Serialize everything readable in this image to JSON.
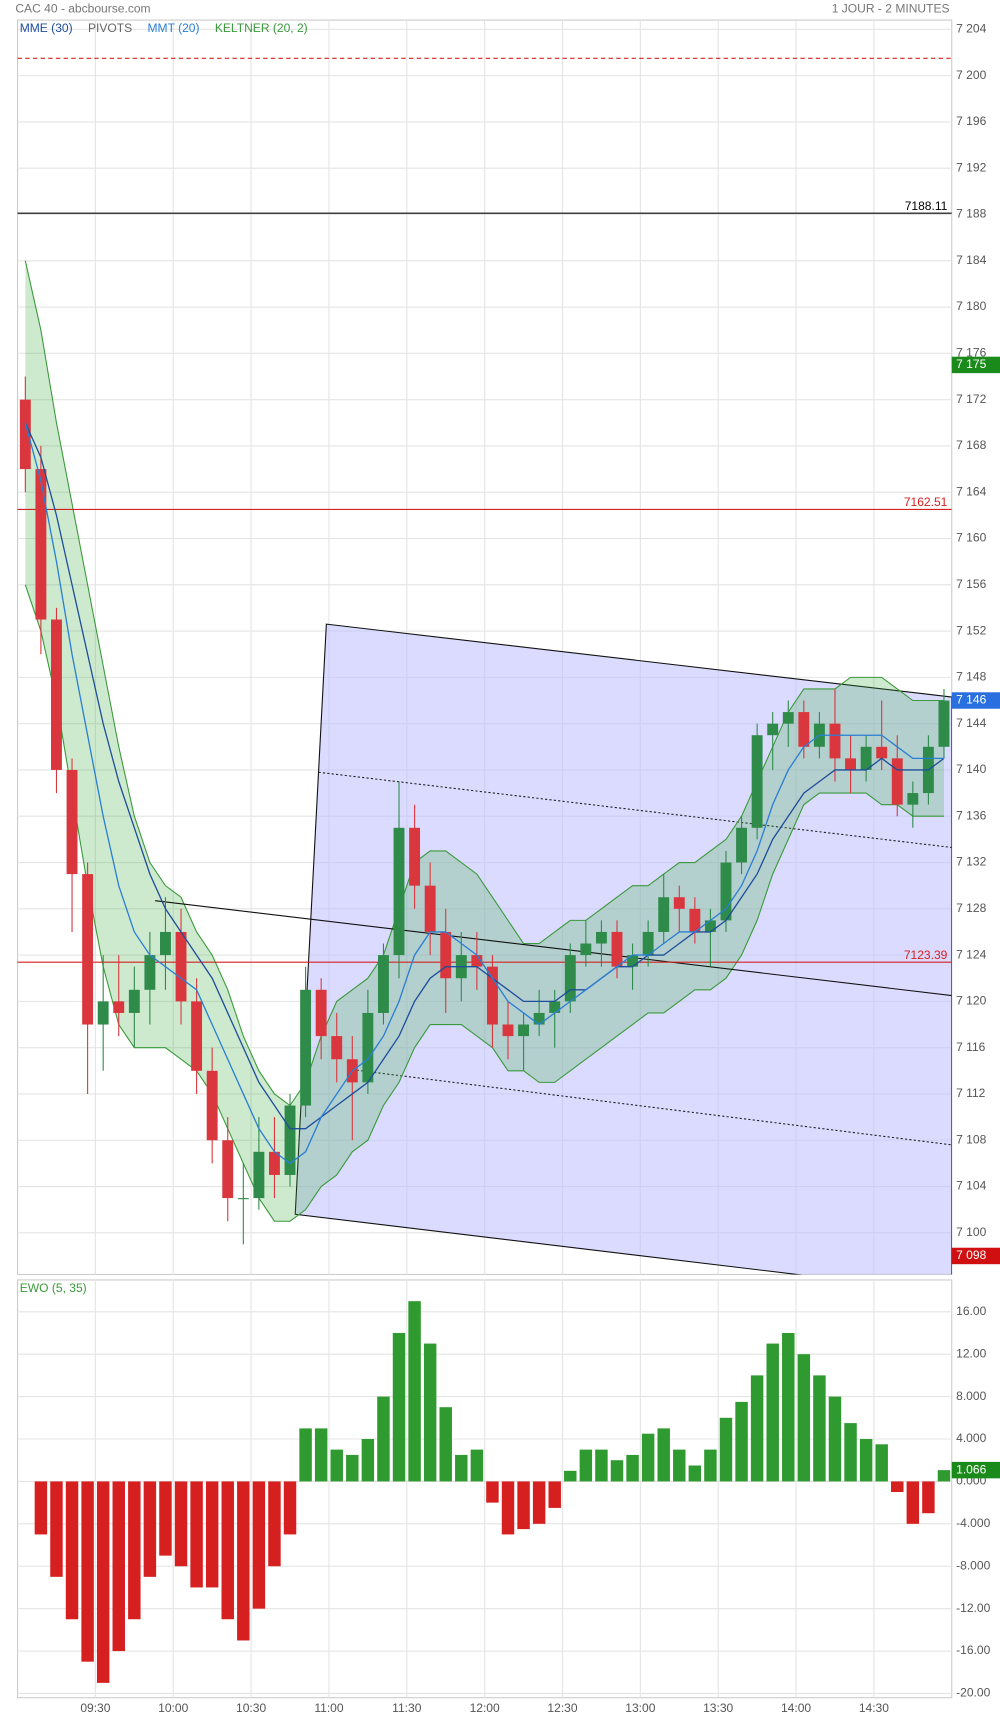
{
  "chart_data": [
    {
      "type": "candlestick",
      "title": "CAC 40 - abcbourse.com",
      "subtitle": "1 JOUR - 2 MINUTES",
      "x": [
        "09:00",
        "09:06",
        "09:12",
        "09:18",
        "09:24",
        "09:30",
        "09:36",
        "09:42",
        "09:48",
        "09:54",
        "10:00",
        "10:06",
        "10:12",
        "10:18",
        "10:24",
        "10:30",
        "10:36",
        "10:42",
        "10:48",
        "10:54",
        "11:00",
        "11:06",
        "11:12",
        "11:18",
        "11:24",
        "11:30",
        "11:36",
        "11:42",
        "11:48",
        "11:54",
        "12:00",
        "12:06",
        "12:12",
        "12:18",
        "12:24",
        "12:30",
        "12:36",
        "12:42",
        "12:48",
        "12:54",
        "13:00",
        "13:06",
        "13:12",
        "13:18",
        "13:24",
        "13:30",
        "13:36",
        "13:42",
        "13:48",
        "13:54",
        "14:00",
        "14:06",
        "14:12",
        "14:18",
        "14:24",
        "14:30",
        "14:36",
        "14:42",
        "14:48",
        "14:54"
      ],
      "open": [
        7172,
        7166,
        7153,
        7140,
        7131,
        7118,
        7120,
        7119,
        7121,
        7124,
        7126,
        7120,
        7114,
        7108,
        7103,
        7103,
        7107,
        7105,
        7111,
        7121,
        7117,
        7115,
        7113,
        7119,
        7124,
        7135,
        7130,
        7126,
        7122,
        7124,
        7123,
        7118,
        7117,
        7118,
        7119,
        7120,
        7124,
        7125,
        7126,
        7123,
        7124,
        7126,
        7129,
        7128,
        7126,
        7127,
        7132,
        7135,
        7143,
        7144,
        7145,
        7142,
        7144,
        7141,
        7140,
        7142,
        7141,
        7137,
        7138,
        7142
      ],
      "high": [
        7174,
        7168,
        7154,
        7141,
        7132,
        7124,
        7124,
        7123,
        7126,
        7129,
        7128,
        7122,
        7116,
        7110,
        7106,
        7110,
        7110,
        7112,
        7123,
        7122,
        7119,
        7117,
        7121,
        7125,
        7139,
        7137,
        7132,
        7128,
        7126,
        7126,
        7124,
        7120,
        7119,
        7121,
        7121,
        7125,
        7127,
        7127,
        7127,
        7125,
        7127,
        7131,
        7130,
        7129,
        7128,
        7133,
        7136,
        7144,
        7145,
        7146,
        7146,
        7145,
        7147,
        7143,
        7143,
        7146,
        7143,
        7139,
        7143,
        7147
      ],
      "low": [
        7164,
        7150,
        7138,
        7126,
        7112,
        7114,
        7117,
        7116,
        7118,
        7121,
        7118,
        7112,
        7106,
        7101,
        7099,
        7102,
        7103,
        7104,
        7110,
        7115,
        7113,
        7108,
        7112,
        7118,
        7122,
        7128,
        7124,
        7119,
        7120,
        7121,
        7116,
        7115,
        7114,
        7117,
        7116,
        7119,
        7123,
        7123,
        7122,
        7121,
        7123,
        7125,
        7126,
        7125,
        7123,
        7126,
        7131,
        7134,
        7140,
        7142,
        7141,
        7141,
        7139,
        7138,
        7139,
        7140,
        7136,
        7135,
        7137,
        7141
      ],
      "close": [
        7166,
        7153,
        7140,
        7131,
        7118,
        7120,
        7119,
        7121,
        7124,
        7126,
        7120,
        7114,
        7108,
        7103,
        7103,
        7107,
        7105,
        7111,
        7121,
        7117,
        7115,
        7113,
        7119,
        7124,
        7135,
        7130,
        7126,
        7122,
        7124,
        7123,
        7118,
        7117,
        7118,
        7119,
        7120,
        7124,
        7125,
        7126,
        7123,
        7124,
        7126,
        7129,
        7128,
        7126,
        7127,
        7132,
        7135,
        7143,
        7144,
        7145,
        7142,
        7144,
        7141,
        7140,
        7142,
        7141,
        7137,
        7138,
        7142,
        7146
      ],
      "up_color": "#2e8b4a",
      "down_color": "#d9363e",
      "series": [
        {
          "name": "MME (30)",
          "color": "#1f4e9c",
          "values": [
            7170,
            7167,
            7162,
            7156,
            7150,
            7144,
            7139,
            7135,
            7131,
            7128,
            7126,
            7124,
            7122,
            7119,
            7116,
            7113,
            7111,
            7109,
            7109,
            7110,
            7111,
            7112,
            7113,
            7115,
            7117,
            7120,
            7122,
            7123,
            7123,
            7123,
            7122,
            7121,
            7120,
            7120,
            7120,
            7121,
            7121,
            7122,
            7123,
            7123,
            7124,
            7124,
            7125,
            7126,
            7126,
            7127,
            7129,
            7131,
            7134,
            7136,
            7138,
            7139,
            7140,
            7140,
            7140,
            7141,
            7140,
            7140,
            7140,
            7141
          ]
        },
        {
          "name": "MMT (20)",
          "color": "#2a7fd4",
          "values": [
            7170,
            7165,
            7158,
            7150,
            7143,
            7136,
            7130,
            7126,
            7124,
            7123,
            7122,
            7121,
            7118,
            7115,
            7112,
            7109,
            7107,
            7106,
            7107,
            7110,
            7112,
            7114,
            7115,
            7117,
            7120,
            7124,
            7126,
            7126,
            7125,
            7124,
            7122,
            7120,
            7119,
            7118,
            7119,
            7120,
            7121,
            7122,
            7123,
            7124,
            7124,
            7125,
            7126,
            7126,
            7127,
            7128,
            7130,
            7133,
            7137,
            7140,
            7142,
            7143,
            7143,
            7143,
            7143,
            7143,
            7142,
            7141,
            7141,
            7141
          ]
        }
      ],
      "pivots": {
        "name": "PIVOTS",
        "color": "#666666",
        "levels": [
          {
            "value": 7201.5,
            "color": "#d62020",
            "dash": true,
            "labeled": false
          },
          {
            "value": 7188.11,
            "color": "#000000",
            "dash": false,
            "labeled": true
          },
          {
            "value": 7162.51,
            "color": "#d62020",
            "dash": false,
            "labeled": true
          },
          {
            "value": 7123.39,
            "color": "#d62020",
            "dash": false,
            "labeled": true
          }
        ]
      },
      "keltner": {
        "name": "KELTNER (20, 2)",
        "color": "#3a9a3a",
        "fill": "rgba(60,170,60,0.25)",
        "upper": [
          7184,
          7178,
          7170,
          7163,
          7156,
          7149,
          7142,
          7136,
          7132,
          7130,
          7129,
          7126,
          7124,
          7121,
          7117,
          7114,
          7112,
          7111,
          7113,
          7117,
          7120,
          7121,
          7122,
          7124,
          7128,
          7132,
          7133,
          7133,
          7132,
          7131,
          7129,
          7127,
          7125,
          7125,
          7126,
          7127,
          7127,
          7128,
          7129,
          7130,
          7130,
          7131,
          7132,
          7132,
          7133,
          7134,
          7136,
          7139,
          7142,
          7145,
          7147,
          7147,
          7147,
          7148,
          7148,
          7148,
          7147,
          7146,
          7146,
          7146
        ],
        "lower": [
          7156,
          7152,
          7146,
          7138,
          7130,
          7123,
          7118,
          7116,
          7116,
          7116,
          7115,
          7114,
          7112,
          7109,
          7106,
          7103,
          7101,
          7101,
          7102,
          7104,
          7105,
          7107,
          7108,
          7111,
          7113,
          7116,
          7118,
          7118,
          7118,
          7117,
          7116,
          7114,
          7114,
          7113,
          7113,
          7114,
          7115,
          7116,
          7117,
          7118,
          7119,
          7119,
          7120,
          7121,
          7121,
          7122,
          7124,
          7127,
          7131,
          7134,
          7137,
          7138,
          7138,
          7138,
          7138,
          7137,
          7137,
          7136,
          7136,
          7136
        ]
      },
      "channel": {
        "fill": "rgba(190,190,255,0.55)",
        "upper": {
          "x": [
            "10:59",
            "15:00"
          ],
          "y": [
            7152.6,
            7146.3
          ]
        },
        "lower": {
          "x": [
            "10:47",
            "15:00"
          ],
          "y": [
            7101.6,
            7094.8
          ]
        },
        "mid": {
          "x": [
            "10:56",
            "15:00"
          ],
          "y": [
            7139.8,
            7133.3
          ]
        },
        "inner": {
          "x": [
            "11:09",
            "15:00"
          ],
          "y": [
            7114.1,
            7107.6
          ]
        }
      },
      "trendline": {
        "x": [
          "09:53",
          "15:00"
        ],
        "y": [
          7128.7,
          7120.5
        ]
      },
      "xlim": [
        "09:00",
        "15:00"
      ],
      "xticks": [
        "09:30",
        "10:00",
        "10:30",
        "11:00",
        "11:30",
        "12:00",
        "12:30",
        "13:00",
        "13:30",
        "14:00",
        "14:30"
      ],
      "ylim": [
        7096.4,
        7204.8
      ],
      "yticks": [
        {
          "value": 7100,
          "label": "7 100"
        },
        {
          "value": 7104,
          "label": "7 104"
        },
        {
          "value": 7108,
          "label": "7 108"
        },
        {
          "value": 7112,
          "label": "7 112"
        },
        {
          "value": 7116,
          "label": "7 116"
        },
        {
          "value": 7120,
          "label": "7 120"
        },
        {
          "value": 7124,
          "label": "7 124"
        },
        {
          "value": 7128,
          "label": "7 128"
        },
        {
          "value": 7132,
          "label": "7 132"
        },
        {
          "value": 7136,
          "label": "7 136"
        },
        {
          "value": 7140,
          "label": "7 140"
        },
        {
          "value": 7144,
          "label": "7 144"
        },
        {
          "value": 7148,
          "label": "7 148"
        },
        {
          "value": 7152,
          "label": "7 152"
        },
        {
          "value": 7156,
          "label": "7 156"
        },
        {
          "value": 7160,
          "label": "7 160"
        },
        {
          "value": 7164,
          "label": "7 164"
        },
        {
          "value": 7168,
          "label": "7 168"
        },
        {
          "value": 7172,
          "label": "7 172"
        },
        {
          "value": 7176,
          "label": "7 176"
        },
        {
          "value": 7180,
          "label": "7 180"
        },
        {
          "value": 7184,
          "label": "7 184"
        },
        {
          "value": 7188,
          "label": "7 188"
        },
        {
          "value": 7192,
          "label": "7 192"
        },
        {
          "value": 7196,
          "label": "7 196"
        },
        {
          "value": 7200,
          "label": "7 200"
        },
        {
          "value": 7204,
          "label": "7 204"
        }
      ],
      "markers": [
        {
          "value": 7175,
          "label": "7 175",
          "color": "#1a8a1a"
        },
        {
          "value": 7146,
          "label": "7 146",
          "color": "#2a6fdf"
        },
        {
          "value": 7098,
          "label": "7 098",
          "color": "#d01010"
        }
      ],
      "grid": true
    },
    {
      "type": "bar",
      "title": "EWO (5, 35)",
      "title_color": "#3a9a3a",
      "x": [
        "09:00",
        "09:06",
        "09:12",
        "09:18",
        "09:24",
        "09:30",
        "09:36",
        "09:42",
        "09:48",
        "09:54",
        "10:00",
        "10:06",
        "10:12",
        "10:18",
        "10:24",
        "10:30",
        "10:36",
        "10:42",
        "10:48",
        "10:54",
        "11:00",
        "11:06",
        "11:12",
        "11:18",
        "11:24",
        "11:30",
        "11:36",
        "11:42",
        "11:48",
        "11:54",
        "12:00",
        "12:06",
        "12:12",
        "12:18",
        "12:24",
        "12:30",
        "12:36",
        "12:42",
        "12:48",
        "12:54",
        "13:00",
        "13:06",
        "13:12",
        "13:18",
        "13:24",
        "13:30",
        "13:36",
        "13:42",
        "13:48",
        "13:54",
        "14:00",
        "14:06",
        "14:12",
        "14:18",
        "14:24",
        "14:30",
        "14:36",
        "14:42",
        "14:48",
        "14:54"
      ],
      "values": [
        null,
        -5,
        -9,
        -13,
        -17,
        -19,
        -16,
        -13,
        -9,
        -7,
        -8,
        -10,
        -10,
        -13,
        -15,
        -12,
        -8,
        -5,
        5,
        5,
        3,
        2.5,
        4,
        8,
        14,
        17,
        13,
        7,
        2.5,
        3,
        -2,
        -5,
        -4.5,
        -4,
        -2.5,
        1,
        3,
        3,
        2,
        2.5,
        4.5,
        5,
        3,
        1.5,
        3,
        6,
        7.5,
        10,
        13,
        14,
        12,
        10,
        8,
        5.5,
        4,
        3.5,
        -1,
        -4,
        -3,
        1.066
      ],
      "positive_color": "#2f9a2f",
      "negative_color": "#d62020",
      "ylim": [
        -20.4,
        19
      ],
      "yticks": [
        {
          "value": -20,
          "label": "-20.00"
        },
        {
          "value": -16,
          "label": "-16.00"
        },
        {
          "value": -12,
          "label": "-12.00"
        },
        {
          "value": -8,
          "label": "-8.000"
        },
        {
          "value": -4,
          "label": "-4.000"
        },
        {
          "value": 0,
          "label": "0.000"
        },
        {
          "value": 4,
          "label": "4.000"
        },
        {
          "value": 8,
          "label": "8.000"
        },
        {
          "value": 12,
          "label": "12.00"
        },
        {
          "value": 16,
          "label": "16.00"
        }
      ],
      "markers": [
        {
          "value": 1.066,
          "label": "1.066",
          "color": "#1a8a1a"
        }
      ],
      "grid": true
    }
  ]
}
